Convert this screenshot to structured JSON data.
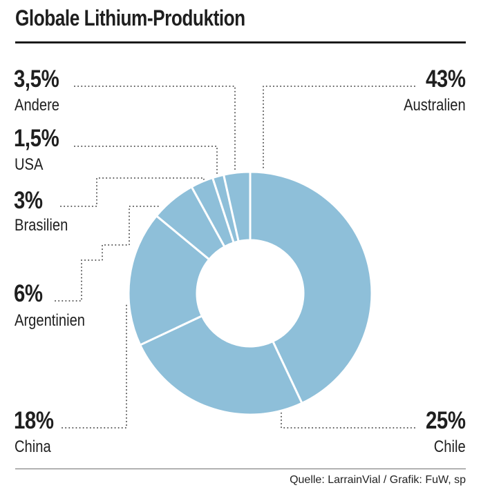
{
  "title": "Globale Lithium-Produktion",
  "source": "Quelle: LarrainVial / Grafik: FuW, sp",
  "colors": {
    "slice": "#8ebfd9",
    "separator": "#ffffff",
    "text": "#1f1f1f",
    "leader": "#555555"
  },
  "chart_data": {
    "type": "pie",
    "variant": "donut",
    "title": "Globale Lithium-Produktion",
    "categories": [
      "Australien",
      "Chile",
      "China",
      "Argentinien",
      "Brasilien",
      "USA",
      "Andere"
    ],
    "values": [
      43,
      25,
      18,
      6,
      3,
      1.5,
      3.5
    ],
    "value_labels": [
      "43%",
      "25%",
      "18%",
      "6%",
      "3%",
      "1,5%",
      "3,5%"
    ],
    "unit": "%"
  }
}
